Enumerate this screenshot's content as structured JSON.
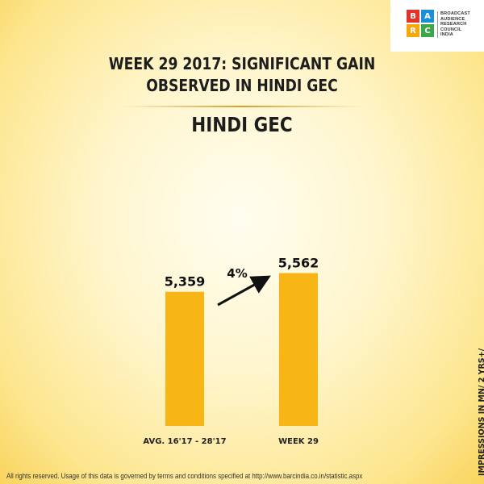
{
  "logo": {
    "letters": [
      "B",
      "A",
      "R",
      "C"
    ],
    "colors": [
      "#e2332b",
      "#1a8fd6",
      "#f7a70a",
      "#3da54a"
    ],
    "text": [
      "BROADCAST",
      "AUDIENCE",
      "RESEARCH",
      "COUNCIL",
      "INDIA"
    ]
  },
  "title": [
    "WEEK 29 2017: SIGNIFICANT GAIN",
    "OBSERVED IN HINDI GEC"
  ],
  "subtitle": "HINDI GEC",
  "chart_data": {
    "type": "bar",
    "categories": [
      "AVG. 16'17 - 28'17",
      "WEEK 29"
    ],
    "values": [
      5359,
      5562
    ],
    "value_labels": [
      "5,359",
      "5,562"
    ],
    "change_label": "4%",
    "ylim": [
      0,
      5900
    ],
    "bar_color": "#f7b516"
  },
  "side_note": "IMPRESSIONS IN MN/ 2 YRS+/",
  "footer": "All rights reserved. Usage of this data is governed by terms and conditions specified at http://www.barcindia.co.in/statistic.aspx"
}
